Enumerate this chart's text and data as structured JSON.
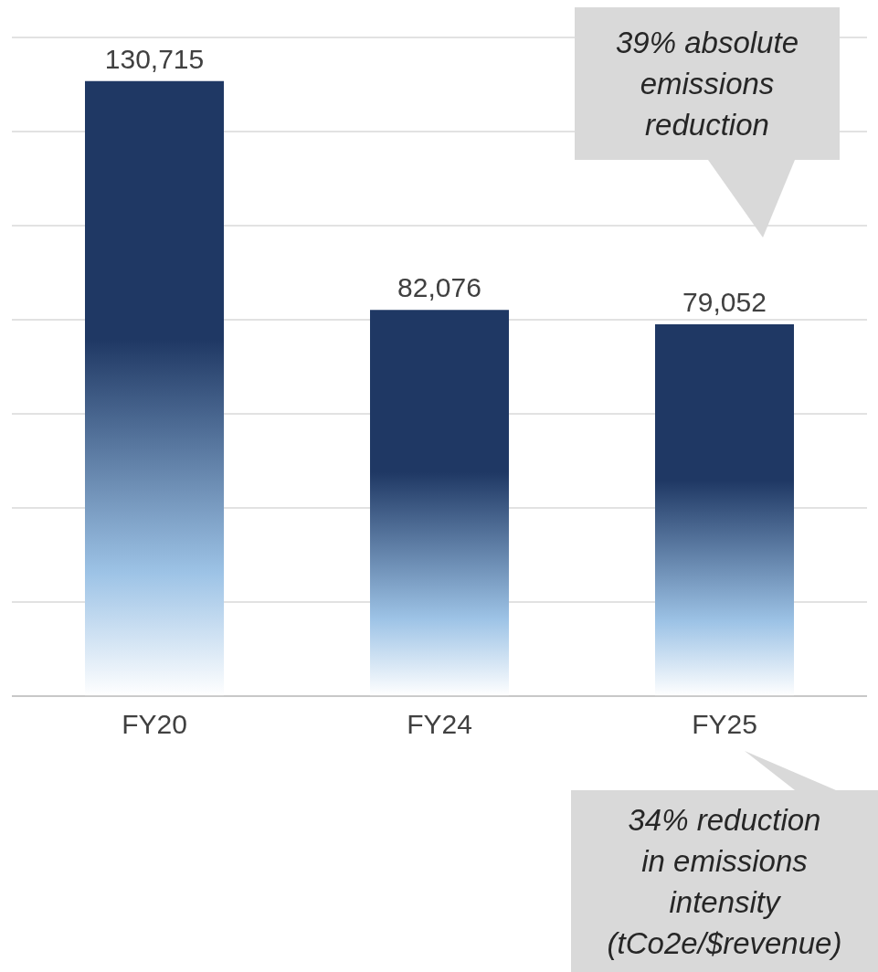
{
  "chart_data": {
    "type": "bar",
    "categories": [
      "FY20",
      "FY24",
      "FY25"
    ],
    "values": [
      130715,
      82076,
      79052
    ],
    "color": "#1f3864",
    "value_labels": [
      "130,715",
      "82,076",
      "79,052"
    ],
    "ylim": [
      0,
      140000
    ],
    "yticks": [
      {
        "value": 0,
        "label": null
      },
      {
        "value": 20000,
        "label": null
      },
      {
        "value": 40000,
        "label": null
      },
      {
        "value": 60000,
        "label": null
      },
      {
        "value": 80000,
        "label": null
      },
      {
        "value": 100000,
        "label": null
      },
      {
        "value": 120000,
        "label": null
      },
      {
        "value": 140000,
        "label": null
      }
    ],
    "grid": "y",
    "tick_labels": "x",
    "legend": false,
    "annotations": [
      "39% absolute\nemissions\nreduction",
      "34% reduction\nin emissions\nintensity\n(tCo2e/$revenue)"
    ]
  }
}
